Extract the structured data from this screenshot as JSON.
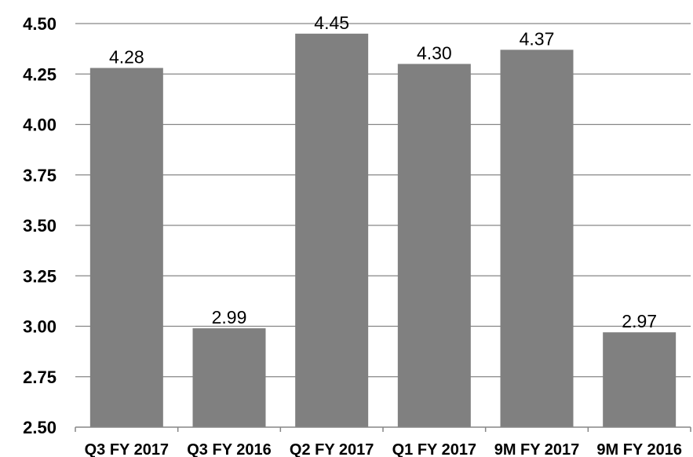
{
  "chart_data": {
    "type": "bar",
    "categories": [
      "Q3 FY 2017",
      "Q3 FY 2016",
      "Q2 FY 2017",
      "Q1 FY 2017",
      "9M FY 2017",
      "9M FY 2016"
    ],
    "values": [
      4.28,
      2.99,
      4.45,
      4.3,
      4.37,
      2.97
    ],
    "data_labels": [
      "4.28",
      "2.99",
      "4.45",
      "4.30",
      "4.37",
      "2.97"
    ],
    "y_ticks": [
      "2.50",
      "2.75",
      "3.00",
      "3.25",
      "3.50",
      "3.75",
      "4.00",
      "4.25",
      "4.50"
    ],
    "ylim": [
      2.5,
      4.5
    ],
    "title": "",
    "xlabel": "",
    "ylabel": "",
    "grid": true,
    "legend": "none",
    "colors": {
      "bar": "#808080",
      "grid": "#868686",
      "axis": "#868686",
      "text": "#000000"
    }
  }
}
